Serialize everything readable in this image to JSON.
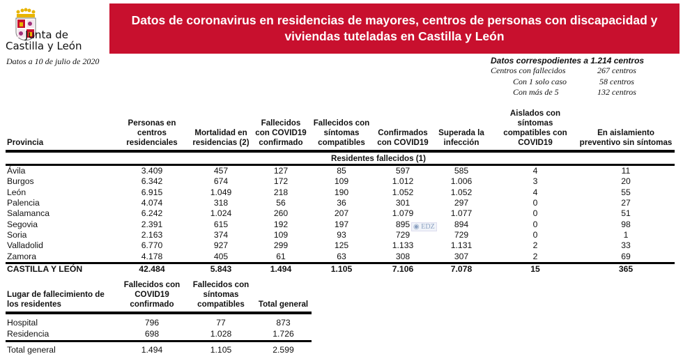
{
  "header": {
    "logo_text_line1": "Junta de",
    "logo_text_line2": "Castilla y León",
    "date": "Datos a 10 de julio de 2020",
    "title": "Datos de coronavirus en residencias de mayores, centros de personas con discapacidad y viviendas tuteladas en Castilla y León",
    "banner_color": "#c8102e"
  },
  "summary": {
    "heading": "Datos correspodientes a 1.214 centros",
    "rows": [
      {
        "label": "Centros con fallecidos",
        "value": "267 centros"
      },
      {
        "label": "Con 1 solo caso",
        "value": "58 centros"
      },
      {
        "label": "Con más de 5",
        "value": "132 centros"
      }
    ]
  },
  "main_table": {
    "columns": [
      "Provincia",
      "Personas en centros residenciales",
      "Mortalidad en residencias (2)",
      "Fallecidos con COVID19 confirmado",
      "Fallecidos con síntomas compatibles",
      "Confirmados con COVID19",
      "Superada la infección",
      "Aislados con síntomas compatibles con COVID19",
      "En aislamiento preventivo sin síntomas"
    ],
    "subheader": "Residentes fallecidos (1)",
    "rows": [
      [
        "Ávila",
        "3.409",
        "457",
        "127",
        "85",
        "597",
        "585",
        "4",
        "11"
      ],
      [
        "Burgos",
        "6.342",
        "674",
        "172",
        "109",
        "1.012",
        "1.006",
        "3",
        "20"
      ],
      [
        "León",
        "6.915",
        "1.049",
        "218",
        "190",
        "1.052",
        "1.052",
        "4",
        "55"
      ],
      [
        "Palencia",
        "4.074",
        "318",
        "56",
        "36",
        "301",
        "297",
        "0",
        "27"
      ],
      [
        "Salamanca",
        "6.242",
        "1.024",
        "260",
        "207",
        "1.079",
        "1.077",
        "0",
        "51"
      ],
      [
        "Segovia",
        "2.391",
        "615",
        "192",
        "197",
        "895",
        "894",
        "0",
        "98"
      ],
      [
        "Soria",
        "2.163",
        "374",
        "109",
        "93",
        "729",
        "729",
        "0",
        "1"
      ],
      [
        "Valladolid",
        "6.770",
        "927",
        "299",
        "125",
        "1.133",
        "1.131",
        "2",
        "33"
      ],
      [
        "Zamora",
        "4.178",
        "405",
        "61",
        "63",
        "308",
        "307",
        "2",
        "69"
      ]
    ],
    "total": [
      "CASTILLA Y LEÓN",
      "42.484",
      "5.843",
      "1.494",
      "1.105",
      "7.106",
      "7.078",
      "15",
      "365"
    ]
  },
  "place_table": {
    "columns": [
      "Lugar de fallecimiento de los residentes",
      "Fallecidos con COVID19 confirmado",
      "Fallecidos con síntomas compatibles",
      "Total general"
    ],
    "rows": [
      [
        "Hospital",
        "796",
        "77",
        "873"
      ],
      [
        "Residencia",
        "698",
        "1.028",
        "1.726"
      ]
    ],
    "total": [
      "Total general",
      "1.494",
      "1.105",
      "2.599"
    ]
  },
  "watermark": "EDZ"
}
